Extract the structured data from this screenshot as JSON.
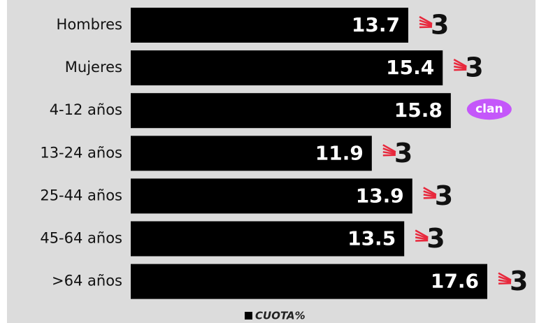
{
  "chart_data": {
    "type": "bar",
    "orientation": "horizontal",
    "categories": [
      "Hombres",
      "Mujeres",
      "4-12 años",
      "13-24 años",
      "25-44 años",
      "45-64 años",
      ">64 años"
    ],
    "series": [
      {
        "name": "CUOTA%",
        "color": "#000000",
        "values": [
          13.7,
          15.4,
          15.8,
          11.9,
          13.9,
          13.5,
          17.6
        ]
      }
    ],
    "channel_labels": [
      "3",
      "3",
      "clan",
      "3",
      "3",
      "3",
      "3"
    ]
  }
}
